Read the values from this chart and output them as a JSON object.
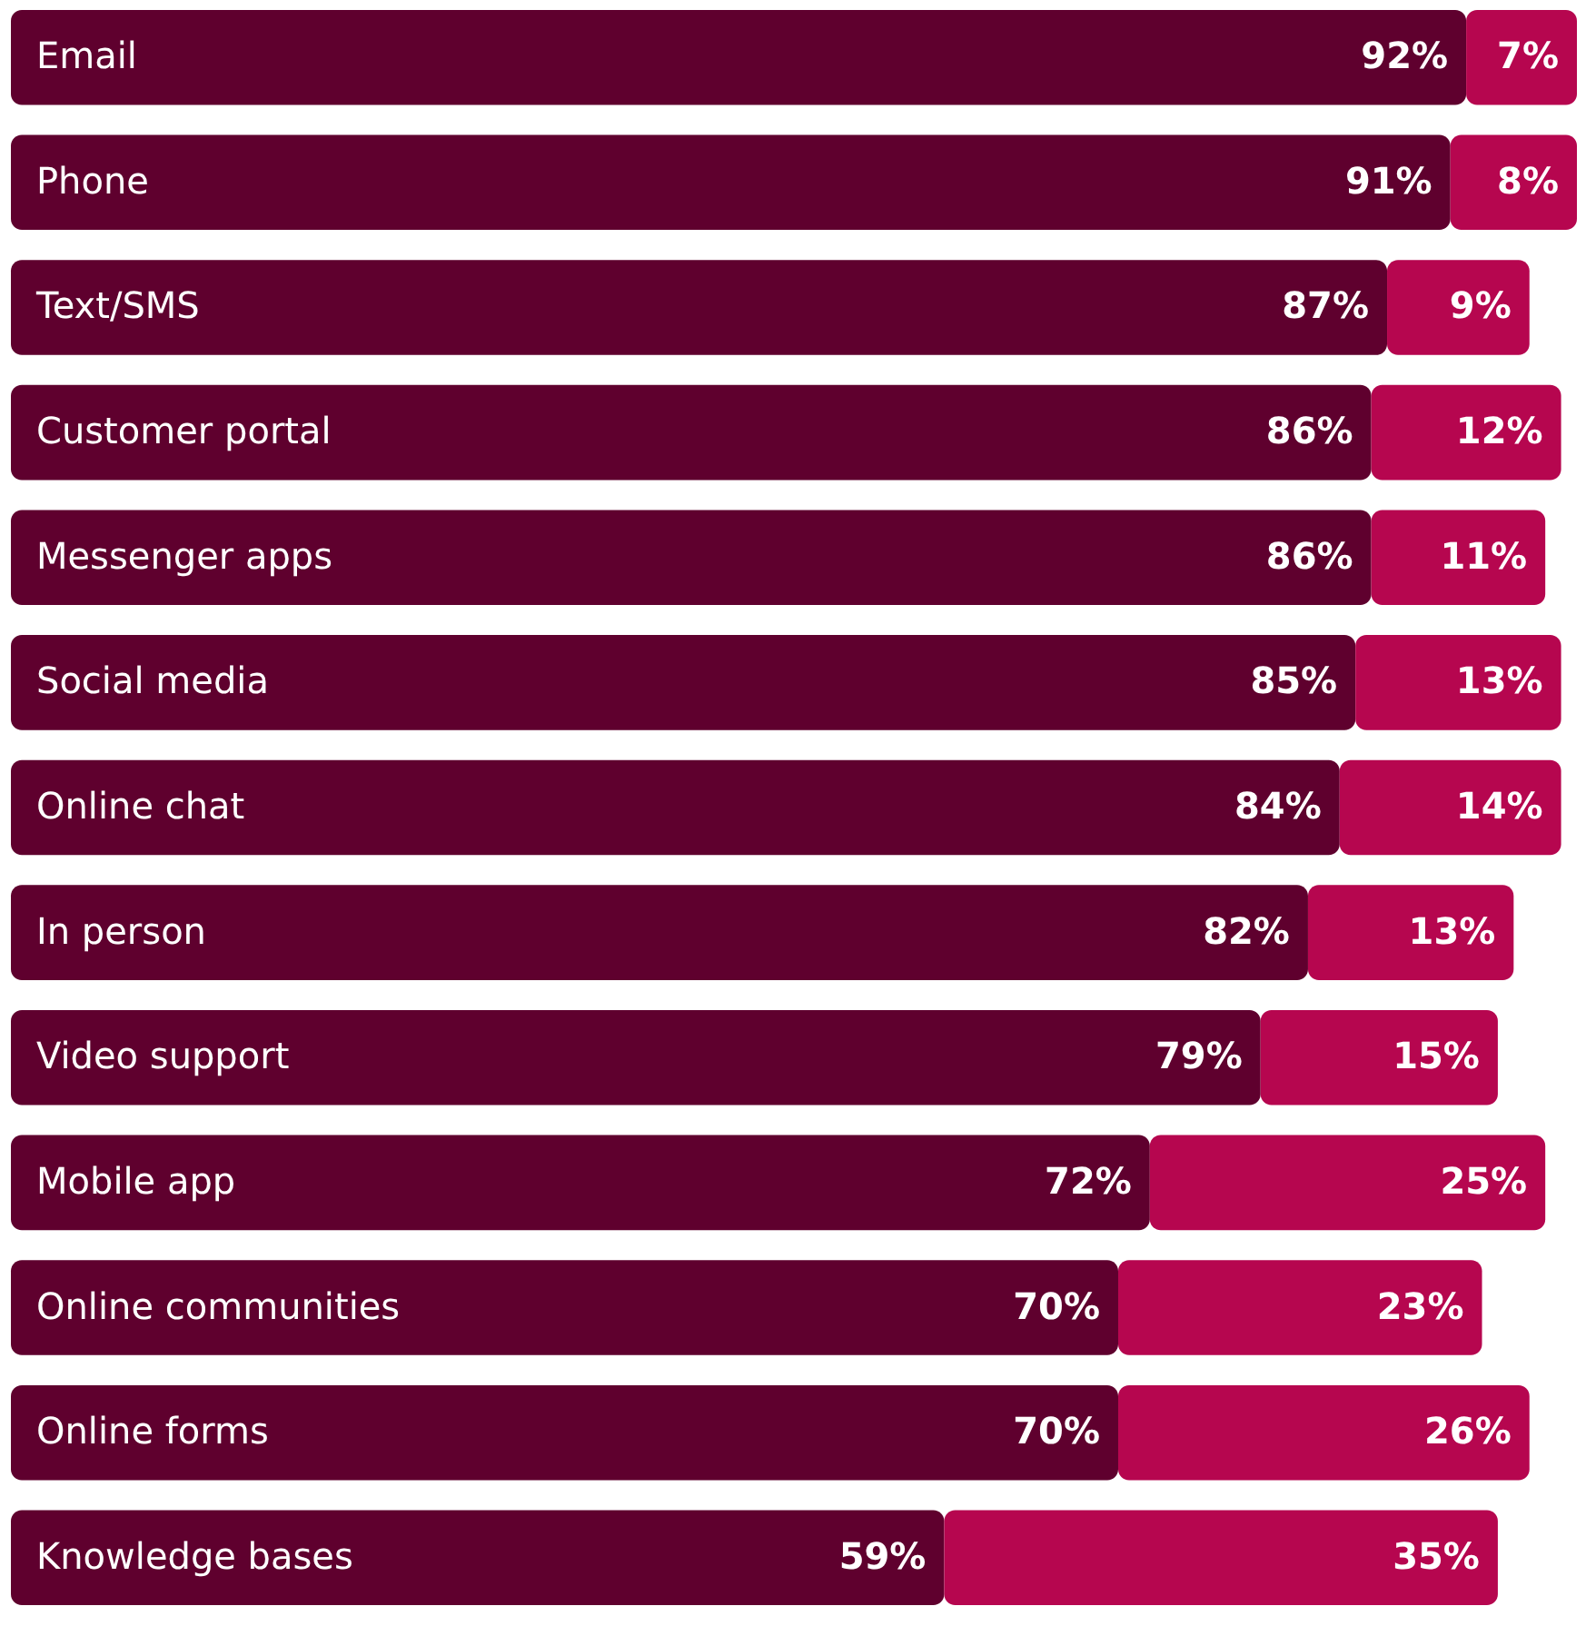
{
  "chart_data": {
    "type": "bar",
    "orientation": "horizontal",
    "stacked": true,
    "categories": [
      "Email",
      "Phone",
      "Text/SMS",
      "Customer portal",
      "Messenger apps",
      "Social media",
      "Online chat",
      "In person",
      "Video support",
      "Mobile app",
      "Online communities",
      "Online forms",
      "Knowledge bases"
    ],
    "series": [
      {
        "color": "#5f002e",
        "values": [
          92,
          91,
          87,
          86,
          86,
          85,
          84,
          82,
          79,
          72,
          70,
          70,
          59
        ],
        "value_labels": [
          "92%",
          "91%",
          "87%",
          "86%",
          "86%",
          "85%",
          "84%",
          "82%",
          "79%",
          "72%",
          "70%",
          "70%",
          "59%"
        ]
      },
      {
        "color": "#b6064f",
        "values": [
          7,
          8,
          9,
          12,
          11,
          13,
          14,
          13,
          15,
          25,
          23,
          26,
          35
        ],
        "value_labels": [
          "7%",
          "8%",
          "9%",
          "12%",
          "11%",
          "13%",
          "14%",
          "13%",
          "15%",
          "25%",
          "23%",
          "26%",
          "35%"
        ]
      }
    ]
  }
}
